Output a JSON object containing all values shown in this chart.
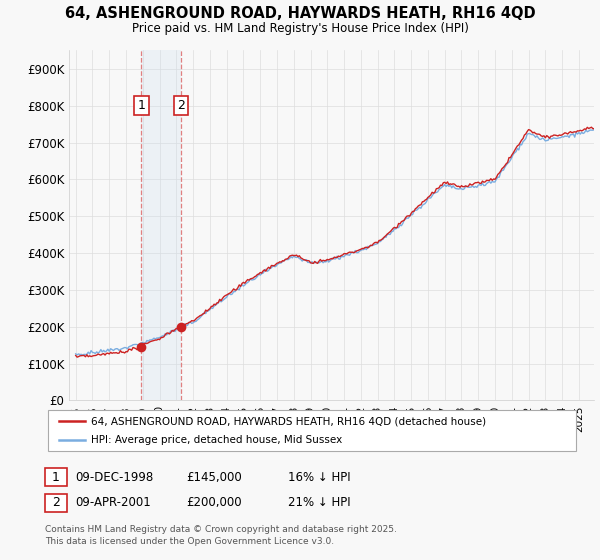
{
  "title_line1": "64, ASHENGROUND ROAD, HAYWARDS HEATH, RH16 4QD",
  "title_line2": "Price paid vs. HM Land Registry's House Price Index (HPI)",
  "legend_line1": "64, ASHENGROUND ROAD, HAYWARDS HEATH, RH16 4QD (detached house)",
  "legend_line2": "HPI: Average price, detached house, Mid Sussex",
  "transaction1_date": "09-DEC-1998",
  "transaction1_price": "£145,000",
  "transaction1_hpi": "16% ↓ HPI",
  "transaction2_date": "09-APR-2001",
  "transaction2_price": "£200,000",
  "transaction2_hpi": "21% ↓ HPI",
  "footer": "Contains HM Land Registry data © Crown copyright and database right 2025.\nThis data is licensed under the Open Government Licence v3.0.",
  "line_color_red": "#cc2222",
  "line_color_blue": "#7aade0",
  "background_color": "#f8f8f8",
  "grid_color": "#dddddd",
  "span_color": "#cce0f0",
  "vline_color": "#e08080",
  "ylim_min": 0,
  "ylim_max": 950000,
  "transaction1_year": 1998.92,
  "transaction2_year": 2001.28,
  "transaction1_value": 145000,
  "transaction2_value": 200000,
  "label1_value": 800000,
  "label2_value": 800000
}
